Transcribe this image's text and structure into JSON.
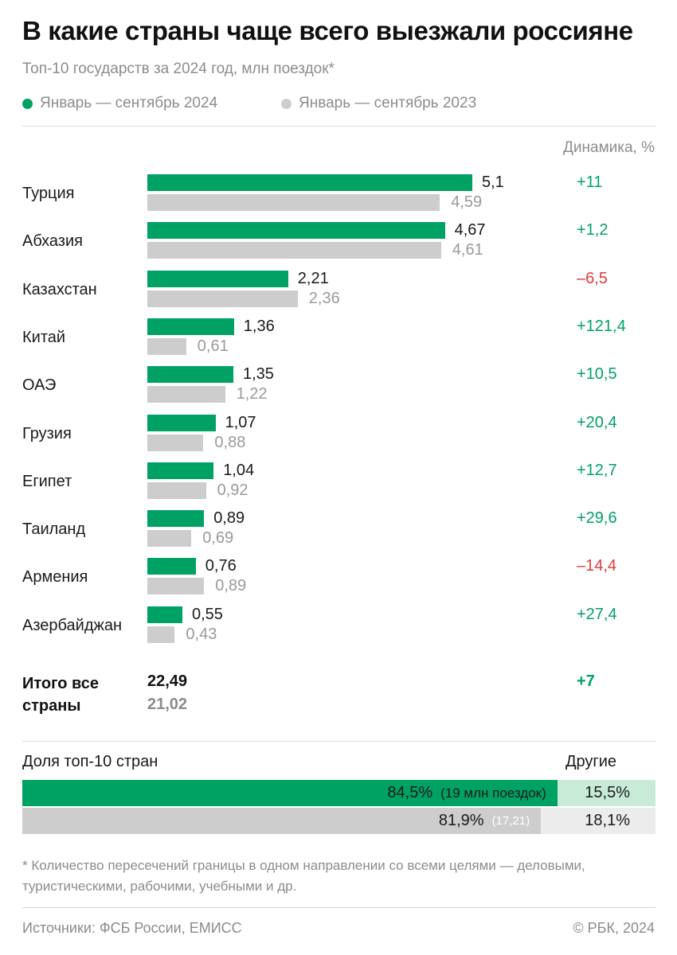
{
  "header": {
    "title": "В какие страны чаще всего выезжали россияне",
    "subtitle": "Топ-10 государств за 2024 год, млн поездок*"
  },
  "legend": {
    "current": "Январь — сентябрь 2024",
    "previous": "Январь — сентябрь 2023"
  },
  "colors": {
    "current": "#00a264",
    "previous": "#cdcdcd",
    "positive": "#00a264",
    "negative": "#e03c3c"
  },
  "dynamics_header": "Динамика, %",
  "chart_data": {
    "type": "bar",
    "orientation": "horizontal",
    "title": "В какие страны чаще всего выезжали россияне",
    "unit": "млн поездок",
    "categories": [
      "Турция",
      "Абхазия",
      "Казахстан",
      "Китай",
      "ОАЭ",
      "Грузия",
      "Египет",
      "Таиланд",
      "Армения",
      "Азербайджан"
    ],
    "series": [
      {
        "name": "Январь — сентябрь 2024",
        "values": [
          5.1,
          4.67,
          2.21,
          1.36,
          1.35,
          1.07,
          1.04,
          0.89,
          0.76,
          0.55
        ],
        "labels": [
          "5,1",
          "4,67",
          "2,21",
          "1,36",
          "1,35",
          "1,07",
          "1,04",
          "0,89",
          "0,76",
          "0,55"
        ]
      },
      {
        "name": "Январь — сентябрь 2023",
        "values": [
          4.59,
          4.61,
          2.36,
          0.61,
          1.22,
          0.88,
          0.92,
          0.69,
          0.89,
          0.43
        ],
        "labels": [
          "4,59",
          "4,61",
          "2,36",
          "0,61",
          "1,22",
          "0,88",
          "0,92",
          "0,69",
          "0,89",
          "0,43"
        ]
      }
    ],
    "dynamics": [
      "+11",
      "+1,2",
      "–6,5",
      "+121,4",
      "+10,5",
      "+20,4",
      "+12,7",
      "+29,6",
      "–14,4",
      "+27,4"
    ],
    "xlim": [
      0,
      5.1
    ],
    "grid": false
  },
  "totals": {
    "label": "Итого все страны",
    "current": "22,49",
    "previous": "21,02",
    "change": "+7"
  },
  "share": {
    "label": "Доля топ-10 стран",
    "others_label": "Другие",
    "current": {
      "pct": 84.5,
      "label": "84,5%",
      "note": "(19 млн поездок)",
      "others": "15,5%"
    },
    "previous": {
      "pct": 81.9,
      "label": "81,9%",
      "note": "(17,21)",
      "others": "18,1%"
    }
  },
  "footnote": "* Количество пересечений границы в одном направлении со всеми целями — деловыми, туристическими, рабочими, учебными и др.",
  "source": "Источники: ФСБ России, ЕМИСС",
  "copyright": "© РБК, 2024"
}
